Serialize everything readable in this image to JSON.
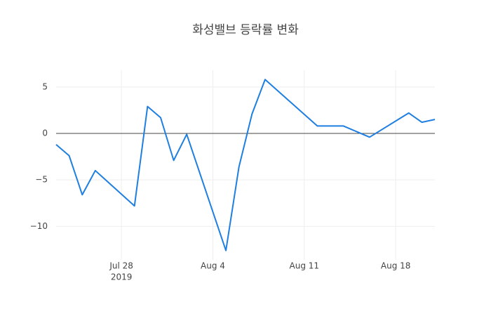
{
  "chart_data": {
    "type": "line",
    "title": "화성밸브 등락률 변화",
    "x": [
      "2019-07-23",
      "2019-07-24",
      "2019-07-25",
      "2019-07-26",
      "2019-07-29",
      "2019-07-30",
      "2019-07-31",
      "2019-08-01",
      "2019-08-02",
      "2019-08-05",
      "2019-08-06",
      "2019-08-07",
      "2019-08-08",
      "2019-08-12",
      "2019-08-14",
      "2019-08-16",
      "2019-08-19",
      "2019-08-20",
      "2019-08-21"
    ],
    "values": [
      -1.2,
      -2.4,
      -6.6,
      -4.0,
      -7.8,
      2.9,
      1.7,
      -2.9,
      -0.1,
      -12.6,
      -3.6,
      2.1,
      5.8,
      0.8,
      0.8,
      -0.4,
      2.2,
      1.2,
      1.5
    ],
    "color": "#1f7fe0",
    "xlim": [
      "2019-07-23",
      "2019-08-21"
    ],
    "xticks": [
      {
        "value": "2019-07-28",
        "label": "Jul 28"
      },
      {
        "value": "2019-08-04",
        "label": "Aug 4"
      },
      {
        "value": "2019-08-11",
        "label": "Aug 11"
      },
      {
        "value": "2019-08-18",
        "label": "Aug 18"
      }
    ],
    "xyear": "2019",
    "ylim": [
      -13.6,
      6.8
    ],
    "yticks": [
      {
        "value": -10,
        "label": "−10"
      },
      {
        "value": -5,
        "label": "−5"
      },
      0,
      5
    ],
    "grid": true,
    "zeroline": true
  }
}
